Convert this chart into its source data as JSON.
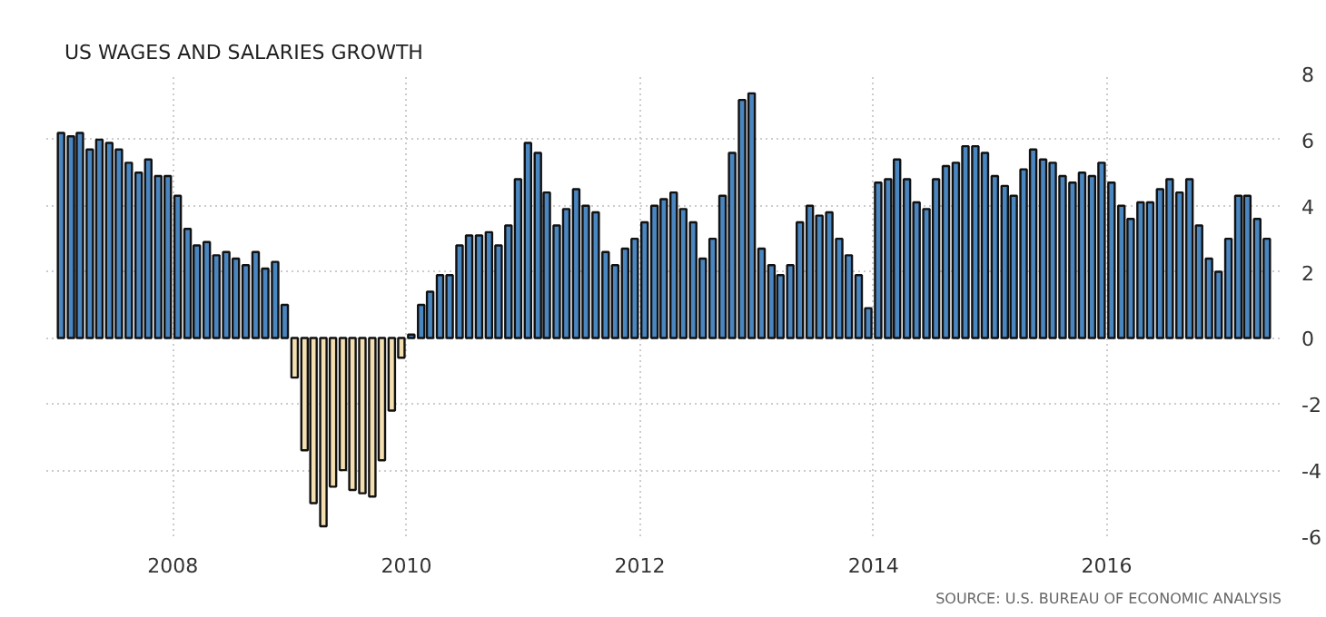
{
  "chart_data": {
    "type": "bar",
    "title": "US WAGES AND SALARIES GROWTH",
    "x": [
      "2007-01",
      "2007-02",
      "2007-03",
      "2007-04",
      "2007-05",
      "2007-06",
      "2007-07",
      "2007-08",
      "2007-09",
      "2007-10",
      "2007-11",
      "2007-12",
      "2008-01",
      "2008-02",
      "2008-03",
      "2008-04",
      "2008-05",
      "2008-06",
      "2008-07",
      "2008-08",
      "2008-09",
      "2008-10",
      "2008-11",
      "2008-12",
      "2009-01",
      "2009-02",
      "2009-03",
      "2009-04",
      "2009-05",
      "2009-06",
      "2009-07",
      "2009-08",
      "2009-09",
      "2009-10",
      "2009-11",
      "2009-12",
      "2010-01",
      "2010-02",
      "2010-03",
      "2010-04",
      "2010-05",
      "2010-06",
      "2010-07",
      "2010-08",
      "2010-09",
      "2010-10",
      "2010-11",
      "2010-12",
      "2011-01",
      "2011-02",
      "2011-03",
      "2011-04",
      "2011-05",
      "2011-06",
      "2011-07",
      "2011-08",
      "2011-09",
      "2011-10",
      "2011-11",
      "2011-12",
      "2012-01",
      "2012-02",
      "2012-03",
      "2012-04",
      "2012-05",
      "2012-06",
      "2012-07",
      "2012-08",
      "2012-09",
      "2012-10",
      "2012-11",
      "2012-12",
      "2013-01",
      "2013-02",
      "2013-03",
      "2013-04",
      "2013-05",
      "2013-06",
      "2013-07",
      "2013-08",
      "2013-09",
      "2013-10",
      "2013-11",
      "2013-12",
      "2014-01",
      "2014-02",
      "2014-03",
      "2014-04",
      "2014-05",
      "2014-06",
      "2014-07",
      "2014-08",
      "2014-09",
      "2014-10",
      "2014-11",
      "2014-12",
      "2015-01",
      "2015-02",
      "2015-03",
      "2015-04",
      "2015-05",
      "2015-06",
      "2015-07",
      "2015-08",
      "2015-09",
      "2015-10",
      "2015-11",
      "2015-12",
      "2016-01",
      "2016-02",
      "2016-03",
      "2016-04",
      "2016-05",
      "2016-06",
      "2016-07",
      "2016-08",
      "2016-09",
      "2016-10",
      "2016-11",
      "2016-12",
      "2017-01",
      "2017-02",
      "2017-03",
      "2017-04",
      "2017-05"
    ],
    "values": [
      6.2,
      6.1,
      6.2,
      5.7,
      6.0,
      5.9,
      5.7,
      5.3,
      5.0,
      5.4,
      4.9,
      4.9,
      4.3,
      3.3,
      2.8,
      2.9,
      2.5,
      2.6,
      2.4,
      2.2,
      2.6,
      2.1,
      2.3,
      1.0,
      -1.2,
      -3.4,
      -5.0,
      -5.7,
      -4.5,
      -4.0,
      -4.6,
      -4.7,
      -4.8,
      -3.7,
      -2.2,
      -0.6,
      0.1,
      1.0,
      1.4,
      1.9,
      1.9,
      2.8,
      3.1,
      3.1,
      3.2,
      2.8,
      3.4,
      4.8,
      5.9,
      5.6,
      4.4,
      3.4,
      3.9,
      4.5,
      4.0,
      3.8,
      2.6,
      2.2,
      2.7,
      3.0,
      3.5,
      4.0,
      4.2,
      4.4,
      3.9,
      3.5,
      2.4,
      3.0,
      4.3,
      5.6,
      7.2,
      7.4,
      2.7,
      2.2,
      1.9,
      2.2,
      3.5,
      4.0,
      3.7,
      3.8,
      3.0,
      2.5,
      1.9,
      0.9,
      4.7,
      4.8,
      5.4,
      4.8,
      4.1,
      3.9,
      4.8,
      5.2,
      5.3,
      5.8,
      5.8,
      5.6,
      4.9,
      4.6,
      4.3,
      5.1,
      5.7,
      5.4,
      5.3,
      4.9,
      4.7,
      5.0,
      4.9,
      5.3,
      4.7,
      4.0,
      3.6,
      4.1,
      4.1,
      4.5,
      4.8,
      4.4,
      4.8,
      3.4,
      2.4,
      2.0,
      3.0,
      4.3,
      4.3,
      3.6,
      3.0
    ],
    "colors": [
      "#4a86c0",
      "#4a86c0",
      "#4a86c0",
      "#4a86c0",
      "#4a86c0",
      "#4a86c0",
      "#4a86c0",
      "#4a86c0",
      "#4a86c0",
      "#4a86c0",
      "#4a86c0",
      "#4a86c0",
      "#4a86c0",
      "#4a86c0",
      "#4a86c0",
      "#4a86c0",
      "#4a86c0",
      "#4a86c0",
      "#4a86c0",
      "#4a86c0",
      "#4a86c0",
      "#4a86c0",
      "#4a86c0",
      "#4a86c0",
      "#f3dfb0",
      "#f3dfb0",
      "#f3dfb0",
      "#f3dfb0",
      "#f3dfb0",
      "#f3dfb0",
      "#f3dfb0",
      "#f3dfb0",
      "#f3dfb0",
      "#f3dfb0",
      "#f3dfb0",
      "#f3dfb0",
      "#4a86c0",
      "#4a86c0",
      "#4a86c0",
      "#4a86c0",
      "#4a86c0",
      "#4a86c0",
      "#4a86c0",
      "#4a86c0",
      "#4a86c0",
      "#4a86c0",
      "#4a86c0",
      "#4a86c0",
      "#4a86c0",
      "#4a86c0",
      "#4a86c0",
      "#4a86c0",
      "#4a86c0",
      "#4a86c0",
      "#4a86c0",
      "#4a86c0",
      "#4a86c0",
      "#4a86c0",
      "#4a86c0",
      "#4a86c0",
      "#4a86c0",
      "#4a86c0",
      "#4a86c0",
      "#4a86c0",
      "#4a86c0",
      "#4a86c0",
      "#4a86c0",
      "#4a86c0",
      "#4a86c0",
      "#4a86c0",
      "#4a86c0",
      "#4a86c0",
      "#4a86c0",
      "#4a86c0",
      "#4a86c0",
      "#4a86c0",
      "#4a86c0",
      "#4a86c0",
      "#4a86c0",
      "#4a86c0",
      "#4a86c0",
      "#4a86c0",
      "#4a86c0",
      "#4a86c0",
      "#4a86c0",
      "#4a86c0",
      "#4a86c0",
      "#4a86c0",
      "#4a86c0",
      "#4a86c0",
      "#4a86c0",
      "#4a86c0",
      "#4a86c0",
      "#4a86c0",
      "#4a86c0",
      "#4a86c0",
      "#4a86c0",
      "#4a86c0",
      "#4a86c0",
      "#4a86c0",
      "#4a86c0",
      "#4a86c0",
      "#4a86c0",
      "#4a86c0",
      "#4a86c0",
      "#4a86c0",
      "#4a86c0",
      "#4a86c0",
      "#4a86c0",
      "#4a86c0",
      "#4a86c0",
      "#4a86c0",
      "#4a86c0",
      "#4a86c0",
      "#4a86c0",
      "#4a86c0",
      "#4a86c0",
      "#4a86c0",
      "#4a86c0",
      "#4a86c0",
      "#4a86c0",
      "#4a86c0",
      "#4a86c0",
      "#4a86c0",
      "#4a86c0"
    ],
    "xlim": [
      "2006-12",
      "2017-07"
    ],
    "xticks": [
      "2008",
      "2010",
      "2012",
      "2014",
      "2016"
    ],
    "ylim": [
      -6,
      8
    ],
    "yticks": [
      -6,
      -4,
      -2,
      0,
      2,
      4,
      6,
      8
    ],
    "grid": true,
    "annotations": [
      "SOURCE: U.S. BUREAU OF ECONOMIC ANALYSIS"
    ]
  }
}
